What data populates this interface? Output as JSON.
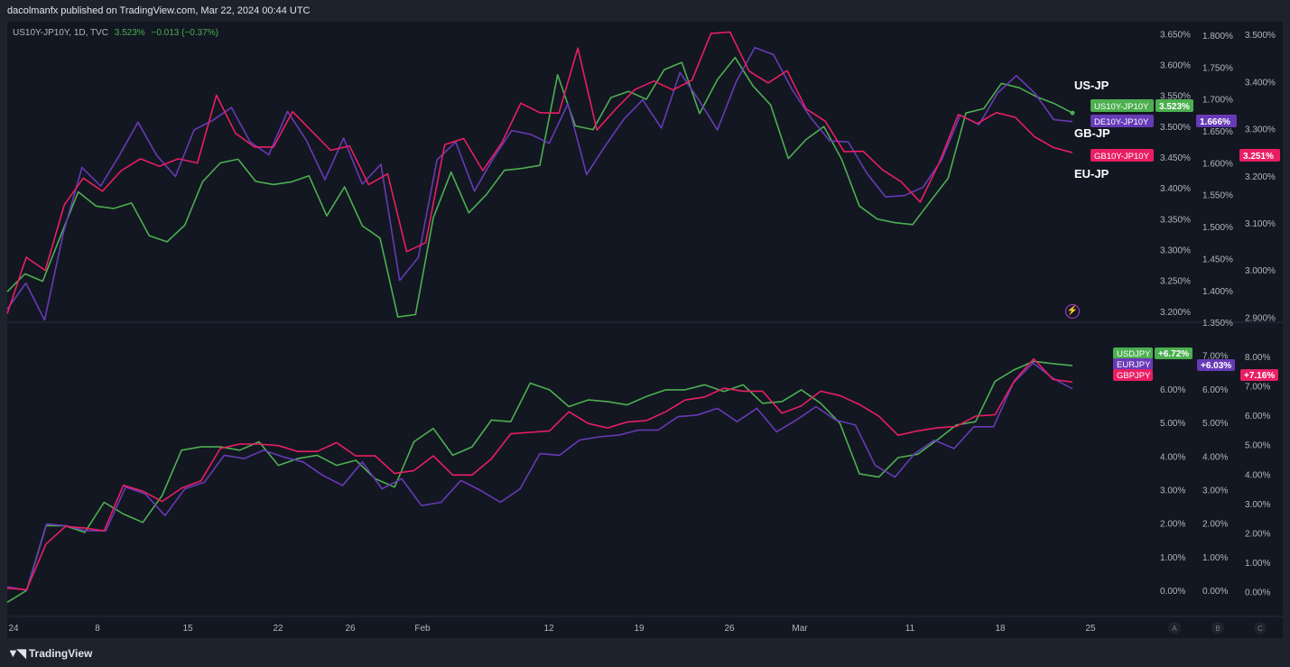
{
  "header": {
    "text": "dacolmanfx published on TradingView.com, Mar 22, 2024 00:44 UTC"
  },
  "legend": {
    "symbol": "US10Y-JP10Y, 1D, TVC",
    "value": "3.523%",
    "change": "−0.013 (−0.37%)"
  },
  "labels": {
    "us": "US-JP",
    "gb": "GB-JP",
    "eu": "EU-JP"
  },
  "footer": {
    "logo_text": "TradingView"
  },
  "icons": {
    "flash": "flash-icon",
    "logo": "tradingview-logo-icon"
  },
  "colors": {
    "green": "#4caf50",
    "purple": "#673ab7",
    "pink": "#e91e63",
    "background": "#131722"
  },
  "chart_data": [
    {
      "type": "line",
      "x_tick_labels": [
        "24",
        "8",
        "15",
        "22",
        "26",
        "Feb",
        "12",
        "19",
        "26",
        "Mar",
        "11",
        "18",
        "25"
      ],
      "scale_labels": [
        "A",
        "B",
        "C"
      ],
      "axes": [
        {
          "ticks": [
            "3.650%",
            "3.600%",
            "3.550%",
            "3.500%",
            "3.450%",
            "3.400%",
            "3.350%",
            "3.300%",
            "3.250%",
            "3.200%"
          ]
        },
        {
          "ticks": [
            "1.800%",
            "1.750%",
            "1.700%",
            "1.650%",
            "1.600%",
            "1.550%",
            "1.500%",
            "1.450%",
            "1.400%",
            "1.350%"
          ]
        },
        {
          "ticks": [
            "3.500%",
            "3.400%",
            "3.300%",
            "3.200%",
            "3.100%",
            "3.000%",
            "2.900%"
          ]
        }
      ],
      "ylim_axes": [
        [
          3.185,
          3.655
        ],
        [
          1.353,
          1.807
        ],
        [
          2.893,
          3.508
        ]
      ],
      "series": [
        {
          "name": "US10Y-JP10Y",
          "color": "#4caf50",
          "axis": 0,
          "last": "3.523%",
          "values": [
            3.233,
            3.262,
            3.25,
            3.323,
            3.395,
            3.372,
            3.368,
            3.377,
            3.324,
            3.314,
            3.341,
            3.411,
            3.442,
            3.448,
            3.412,
            3.407,
            3.411,
            3.421,
            3.356,
            3.403,
            3.34,
            3.32,
            3.192,
            3.196,
            3.353,
            3.427,
            3.361,
            3.391,
            3.43,
            3.433,
            3.438,
            3.585,
            3.502,
            3.496,
            3.548,
            3.558,
            3.545,
            3.593,
            3.605,
            3.522,
            3.577,
            3.613,
            3.567,
            3.536,
            3.449,
            3.48,
            3.501,
            3.448,
            3.372,
            3.351,
            3.345,
            3.342,
            3.38,
            3.417,
            3.523,
            3.53,
            3.571,
            3.564,
            3.549,
            3.538,
            3.523
          ]
        },
        {
          "name": "DE10Y-JP10Y",
          "color": "#673ab7",
          "axis": 1,
          "last": "1.666%",
          "values": [
            1.372,
            1.413,
            1.355,
            1.491,
            1.594,
            1.565,
            1.613,
            1.665,
            1.613,
            1.58,
            1.653,
            1.668,
            1.688,
            1.634,
            1.614,
            1.682,
            1.637,
            1.575,
            1.64,
            1.568,
            1.599,
            1.417,
            1.453,
            1.606,
            1.634,
            1.557,
            1.608,
            1.652,
            1.646,
            1.632,
            1.694,
            1.583,
            1.628,
            1.67,
            1.7,
            1.656,
            1.743,
            1.7,
            1.653,
            1.728,
            1.782,
            1.771,
            1.716,
            1.672,
            1.636,
            1.634,
            1.585,
            1.548,
            1.55,
            1.563,
            1.606,
            1.676,
            1.661,
            1.711,
            1.738,
            1.71,
            1.669,
            1.666
          ]
        },
        {
          "name": "GB10Y-JP10Y",
          "color": "#e91e63",
          "axis": 2,
          "last": "3.251%",
          "values": [
            2.909,
            3.029,
            3.001,
            3.14,
            3.197,
            3.169,
            3.213,
            3.238,
            3.222,
            3.238,
            3.229,
            3.373,
            3.292,
            3.263,
            3.263,
            3.338,
            3.297,
            3.256,
            3.265,
            3.183,
            3.206,
            3.041,
            3.06,
            3.268,
            3.281,
            3.213,
            3.272,
            3.356,
            3.336,
            3.335,
            3.473,
            3.299,
            3.344,
            3.385,
            3.403,
            3.384,
            3.405,
            3.504,
            3.507,
            3.424,
            3.399,
            3.425,
            3.344,
            3.318,
            3.253,
            3.254,
            3.215,
            3.189,
            3.146,
            3.23,
            3.332,
            3.313,
            3.336,
            3.326,
            3.285,
            3.262,
            3.251
          ]
        }
      ]
    },
    {
      "type": "line",
      "x_tick_labels": [
        "24",
        "8",
        "15",
        "22",
        "26",
        "Feb",
        "12",
        "19",
        "26",
        "Mar",
        "11",
        "18",
        "25"
      ],
      "axes": [
        {
          "ticks": [
            "7.00%",
            "6.00%",
            "5.00%",
            "4.00%",
            "3.00%",
            "2.00%",
            "1.00%",
            "0.00%"
          ]
        },
        {
          "ticks": [
            "7.00%",
            "6.00%",
            "5.00%",
            "4.00%",
            "3.00%",
            "2.00%",
            "1.00%",
            "0.00%"
          ]
        },
        {
          "ticks": [
            "8.00%",
            "7.00%",
            "6.00%",
            "5.00%",
            "4.00%",
            "3.00%",
            "2.00%",
            "1.00%",
            "0.00%"
          ]
        }
      ],
      "ylim_axes": [
        [
          -0.35,
          7.45
        ],
        [
          -0.35,
          7.45
        ],
        [
          -0.35,
          8.55
        ]
      ],
      "series": [
        {
          "name": "USDJPY",
          "color": "#4caf50",
          "axis": 0,
          "last": "+6.72%",
          "values": [
            -0.33,
            0.02,
            1.95,
            1.95,
            1.75,
            2.65,
            2.3,
            2.05,
            2.85,
            4.2,
            4.3,
            4.3,
            4.2,
            4.45,
            3.75,
            3.95,
            4.05,
            3.75,
            3.9,
            3.35,
            3.1,
            4.45,
            4.85,
            4.05,
            4.3,
            5.1,
            5.05,
            6.2,
            6.0,
            5.5,
            5.7,
            5.65,
            5.55,
            5.8,
            6.0,
            6.0,
            6.15,
            5.95,
            6.15,
            5.6,
            5.65,
            6.0,
            5.6,
            5.0,
            3.5,
            3.4,
            3.98,
            4.08,
            4.5,
            4.95,
            5.05,
            6.25,
            6.6,
            6.85,
            6.78,
            6.72
          ]
        },
        {
          "name": "EURJPY",
          "color": "#673ab7",
          "axis": 1,
          "last": "+6.03%",
          "values": [
            0.13,
            0.03,
            2.0,
            1.95,
            1.8,
            1.8,
            3.1,
            2.9,
            2.25,
            3.05,
            3.25,
            4.05,
            3.95,
            4.2,
            4.0,
            3.85,
            3.45,
            3.15,
            3.85,
            3.05,
            3.35,
            2.55,
            2.65,
            3.3,
            3.0,
            2.65,
            3.05,
            4.1,
            4.05,
            4.5,
            4.6,
            4.65,
            4.8,
            4.8,
            5.2,
            5.25,
            5.45,
            5.05,
            5.45,
            4.75,
            5.1,
            5.5,
            5.1,
            4.95,
            3.75,
            3.4,
            4.1,
            4.5,
            4.25,
            4.9,
            4.9,
            6.2,
            6.8,
            6.35,
            6.03
          ]
        },
        {
          "name": "GBPJPY",
          "color": "#e91e63",
          "axis": 2,
          "last": "+7.16%",
          "values": [
            0.15,
            0.1,
            1.65,
            2.25,
            2.2,
            2.1,
            3.65,
            3.45,
            3.1,
            3.55,
            3.8,
            4.9,
            5.05,
            5.05,
            5.0,
            4.8,
            4.8,
            5.1,
            4.65,
            4.65,
            4.05,
            4.15,
            4.65,
            4.0,
            4.0,
            4.55,
            5.4,
            5.45,
            5.5,
            6.15,
            5.75,
            5.6,
            5.8,
            5.85,
            6.15,
            6.55,
            6.65,
            6.95,
            6.85,
            6.85,
            6.1,
            6.35,
            6.85,
            6.7,
            6.4,
            6.0,
            5.35,
            5.5,
            5.6,
            5.65,
            6.0,
            6.05,
            7.2,
            7.95,
            7.25,
            7.16
          ]
        }
      ]
    }
  ]
}
